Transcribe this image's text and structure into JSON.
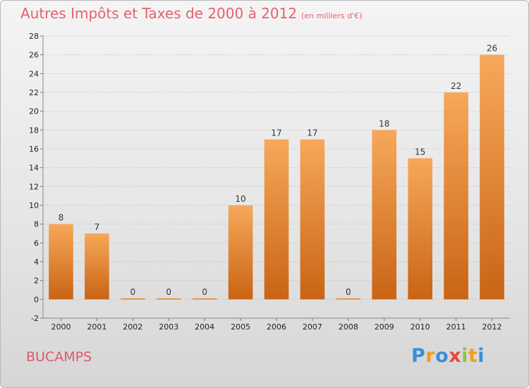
{
  "header": {
    "title": "Autres Impôts et Taxes de 2000 à 2012",
    "subtitle": "(en milliers d'€)"
  },
  "footer": {
    "commune": "BUCAMPS",
    "logo": {
      "text": "Proxiti",
      "letters": [
        "P",
        "r",
        "o",
        "x",
        "i",
        "t",
        "i"
      ],
      "colors": [
        "#3a8fd6",
        "#f39c1e",
        "#3a8fd6",
        "#e84a3a",
        "#8cc63f",
        "#f39c1e",
        "#3a8fd6"
      ]
    }
  },
  "colors": {
    "bar_light": "#f7a85a",
    "bar_dark": "#c96414",
    "grid": "#bdbdbd",
    "axis_text": "#222222"
  },
  "chart_data": {
    "type": "bar",
    "categories": [
      "2000",
      "2001",
      "2002",
      "2003",
      "2004",
      "2005",
      "2006",
      "2007",
      "2008",
      "2009",
      "2010",
      "2011",
      "2012"
    ],
    "values": [
      8,
      7,
      0,
      0,
      0,
      10,
      17,
      17,
      0,
      18,
      15,
      22,
      26
    ],
    "data_labels": [
      "8",
      "7",
      "0",
      "0",
      "0",
      "10",
      "17",
      "17",
      "0",
      "18",
      "15",
      "22",
      "26"
    ],
    "ylim": [
      -2,
      28
    ],
    "yticks": [
      -2,
      0,
      2,
      4,
      6,
      8,
      10,
      12,
      14,
      16,
      18,
      20,
      22,
      24,
      26,
      28
    ],
    "title": "Autres Impôts et Taxes de 2000 à 2012",
    "xlabel": "",
    "ylabel": "",
    "grid": true,
    "legend": "none"
  }
}
